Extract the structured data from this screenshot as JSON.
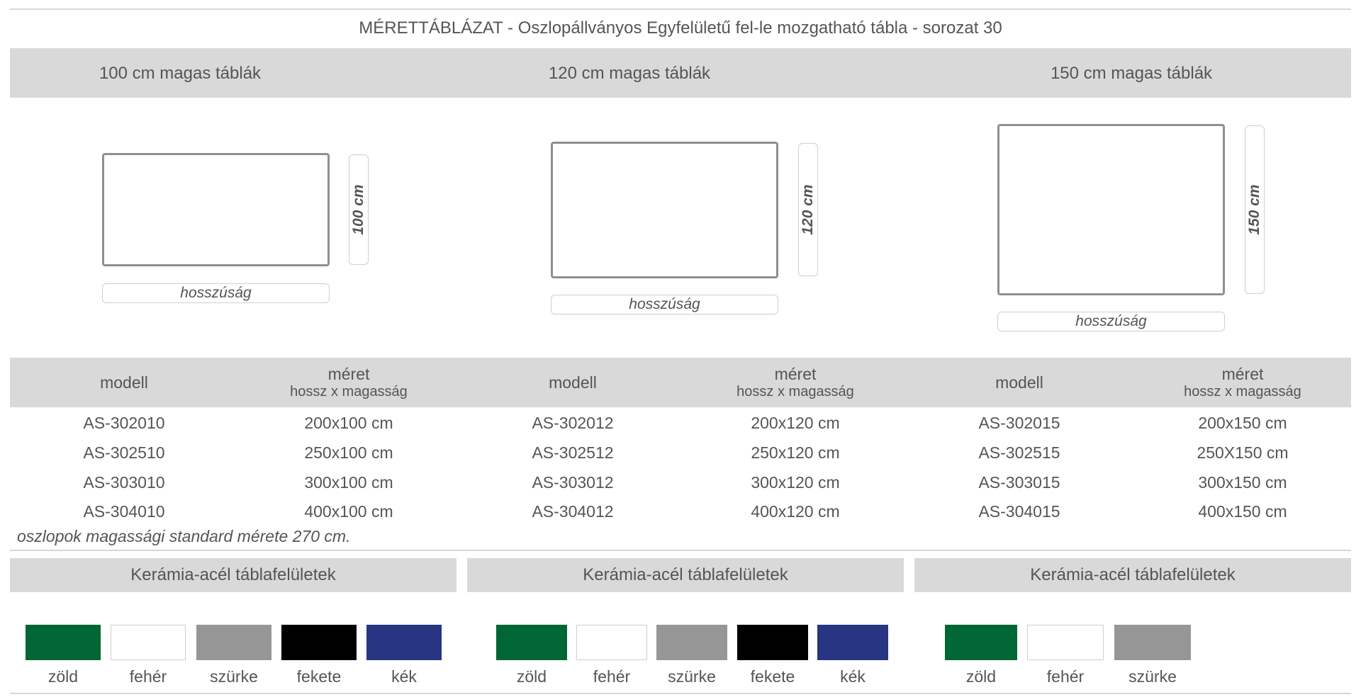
{
  "title": "MÉRETTÁBLÁZAT - Oszlopállványos Egyfelületű fel-le mozgatható tábla - sorozat 30",
  "groups": [
    {
      "heading": "100 cm magas táblák",
      "height_label": "100 cm",
      "length_label": "hosszúság",
      "col_model": "modell",
      "col_size": "méret",
      "col_size_sub": "hossz x magasság",
      "rows": [
        {
          "model": "AS-302010",
          "size": "200x100 cm"
        },
        {
          "model": "AS-302510",
          "size": "250x100 cm"
        },
        {
          "model": "AS-303010",
          "size": "300x100 cm"
        },
        {
          "model": "AS-304010",
          "size": "400x100 cm"
        }
      ]
    },
    {
      "heading": "120 cm magas táblák",
      "height_label": "120 cm",
      "length_label": "hosszúság",
      "col_model": "modell",
      "col_size": "méret",
      "col_size_sub": "hossz x magasság",
      "rows": [
        {
          "model": "AS-302012",
          "size": "200x120 cm"
        },
        {
          "model": "AS-302512",
          "size": "250x120 cm"
        },
        {
          "model": "AS-303012",
          "size": "300x120 cm"
        },
        {
          "model": "AS-304012",
          "size": "400x120 cm"
        }
      ]
    },
    {
      "heading": "150 cm magas táblák",
      "height_label": "150 cm",
      "length_label": "hosszúság",
      "col_model": "modell",
      "col_size": "méret",
      "col_size_sub": "hossz x magasság",
      "rows": [
        {
          "model": "AS-302015",
          "size": "200x150 cm"
        },
        {
          "model": "AS-302515",
          "size": "250X150 cm"
        },
        {
          "model": "AS-303015",
          "size": "300x150 cm"
        },
        {
          "model": "AS-304015",
          "size": "400x150 cm"
        }
      ]
    }
  ],
  "note": "oszlopok magassági standard mérete 270 cm.",
  "surfaces": [
    {
      "heading": "Kerámia-acél táblafelületek",
      "colors": [
        {
          "label": "zöld",
          "hex": "#006633"
        },
        {
          "label": "fehér",
          "hex": "#ffffff"
        },
        {
          "label": "szürke",
          "hex": "#969696"
        },
        {
          "label": "fekete",
          "hex": "#000000"
        },
        {
          "label": "kék",
          "hex": "#273583"
        }
      ]
    },
    {
      "heading": "Kerámia-acél táblafelületek",
      "colors": [
        {
          "label": "zöld",
          "hex": "#006633"
        },
        {
          "label": "fehér",
          "hex": "#ffffff"
        },
        {
          "label": "szürke",
          "hex": "#969696"
        },
        {
          "label": "fekete",
          "hex": "#000000"
        },
        {
          "label": "kék",
          "hex": "#273583"
        }
      ]
    },
    {
      "heading": "Kerámia-acél táblafelületek",
      "colors": [
        {
          "label": "zöld",
          "hex": "#006633"
        },
        {
          "label": "fehér",
          "hex": "#ffffff"
        },
        {
          "label": "szürke",
          "hex": "#969696"
        }
      ]
    }
  ]
}
